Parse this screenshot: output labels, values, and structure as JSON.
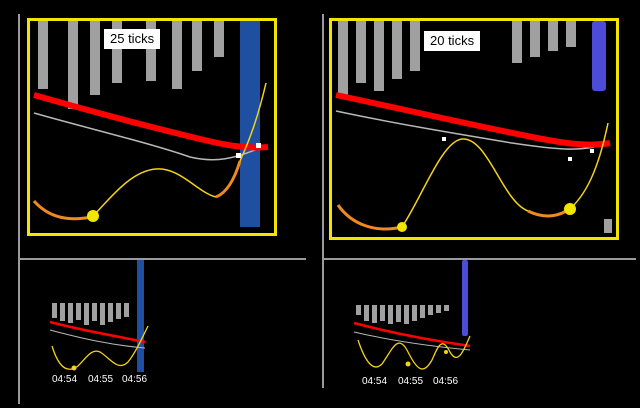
{
  "colors": {
    "background": "#000000",
    "frame": "#f2e600",
    "bars": "#a0a0a0",
    "highlight_left": "#1e4fa0",
    "highlight_right": "#4c4cd8",
    "ma_thick": "#ff0000",
    "ma_thin": "#b8b8b8",
    "curve": "#f2d21a",
    "curve_low": "#f08a1e"
  },
  "panels": [
    {
      "tick_label": "25 ticks",
      "time_labels": [
        "04:54",
        "04:55",
        "04:56"
      ]
    },
    {
      "tick_label": "20 ticks",
      "time_labels": [
        "04:54",
        "04:55",
        "04:56"
      ]
    }
  ]
}
